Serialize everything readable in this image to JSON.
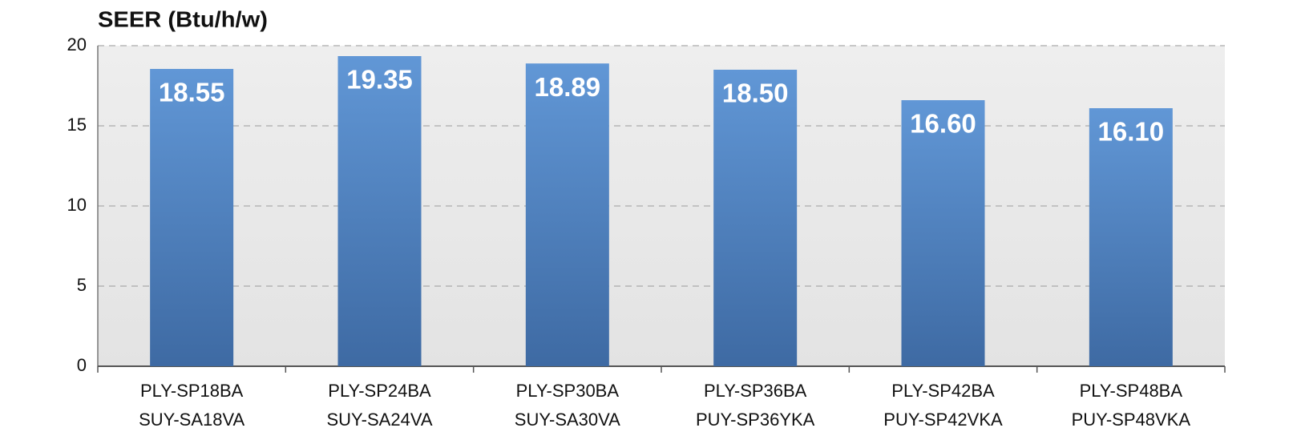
{
  "chart_data": {
    "type": "bar",
    "title": "SEER (Btu/h/w)",
    "categories": [
      [
        "PLY-SP18BA",
        "SUY-SA18VA"
      ],
      [
        "PLY-SP24BA",
        "SUY-SA24VA"
      ],
      [
        "PLY-SP30BA",
        "SUY-SA30VA"
      ],
      [
        "PLY-SP36BA",
        "PUY-SP36YKA"
      ],
      [
        "PLY-SP42BA",
        "PUY-SP42VKA"
      ],
      [
        "PLY-SP48BA",
        "PUY-SP48VKA"
      ]
    ],
    "values": [
      18.55,
      19.35,
      18.89,
      18.5,
      16.6,
      16.1
    ],
    "value_labels": [
      "18.55",
      "19.35",
      "18.89",
      "18.50",
      "16.60",
      "16.10"
    ],
    "color": "#4f80bf",
    "ylim": [
      0,
      20
    ],
    "yticks": [
      0,
      5,
      10,
      15,
      20
    ],
    "grid": true
  }
}
